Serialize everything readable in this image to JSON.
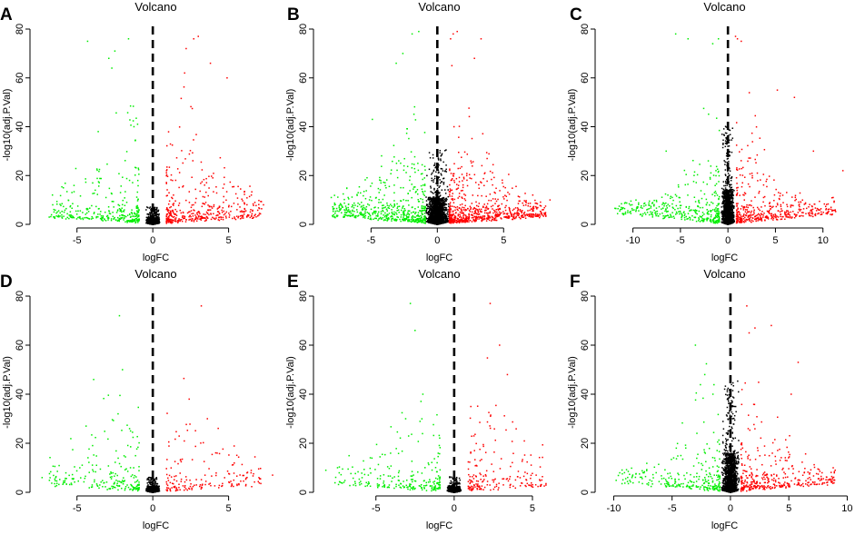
{
  "figure": {
    "colors": {
      "up": "#ff0000",
      "down": "#00ee00",
      "ns": "#000000",
      "axis": "#000000",
      "threshold": "#000000"
    }
  },
  "chart_data": [
    {
      "panel": "A",
      "type": "scatter",
      "title": "Volcano",
      "xlabel": "logFC",
      "ylabel": "-log10(adj.P.Val)",
      "xlim": [
        -7.8,
        8.2
      ],
      "ylim": [
        0,
        80
      ],
      "xticks": [
        -5,
        0,
        5
      ],
      "yticks": [
        0,
        20,
        40,
        60,
        80
      ],
      "threshold_x": 0,
      "seed": 11,
      "n_ns": 1400,
      "ns_spread": 0.35,
      "ns_max": 7,
      "n_up": 420,
      "n_down": 330,
      "up_highlights": [
        [
          2.7,
          76
        ],
        [
          3.0,
          77
        ],
        [
          2.2,
          72
        ],
        [
          3.8,
          66
        ],
        [
          4.9,
          60
        ],
        [
          2.1,
          62
        ],
        [
          7.3,
          8
        ],
        [
          6.5,
          12
        ]
      ],
      "down_highlights": [
        [
          -4.3,
          75
        ],
        [
          -2.5,
          71
        ],
        [
          -1.6,
          76
        ],
        [
          -2.9,
          68
        ],
        [
          -2.7,
          64
        ],
        [
          -6.6,
          8
        ],
        [
          -3.6,
          38
        ]
      ]
    },
    {
      "panel": "B",
      "type": "scatter",
      "title": "Volcano",
      "xlabel": "logFC",
      "ylabel": "-log10(adj.P.Val)",
      "xlim": [
        -9.0,
        9.3
      ],
      "ylim": [
        0,
        80
      ],
      "xticks": [
        -5,
        0,
        5
      ],
      "yticks": [
        0,
        20,
        40,
        60,
        80
      ],
      "threshold_x": 0,
      "seed": 23,
      "n_ns": 1800,
      "ns_spread": 0.7,
      "ns_max": 30,
      "n_up": 700,
      "n_down": 550,
      "up_highlights": [
        [
          1.2,
          78
        ],
        [
          1.5,
          79
        ],
        [
          1.0,
          76
        ],
        [
          3.3,
          76
        ],
        [
          2.8,
          68
        ],
        [
          1.1,
          65
        ],
        [
          8.5,
          10
        ],
        [
          7.2,
          12
        ]
      ],
      "down_highlights": [
        [
          -1.9,
          78
        ],
        [
          -1.4,
          79
        ],
        [
          -2.6,
          70
        ],
        [
          -3.1,
          66
        ],
        [
          -8.0,
          11
        ],
        [
          -4.9,
          43
        ]
      ]
    },
    {
      "panel": "C",
      "type": "scatter",
      "title": "Volcano",
      "xlabel": "logFC",
      "ylabel": "-log10(adj.P.Val)",
      "xlim": [
        -13.5,
        12.8
      ],
      "ylim": [
        0,
        80
      ],
      "xticks": [
        -10,
        -5,
        0,
        5,
        10
      ],
      "yticks": [
        0,
        20,
        40,
        60,
        80
      ],
      "threshold_x": 0,
      "seed": 37,
      "n_ns": 1500,
      "ns_spread": 0.55,
      "ns_max": 40,
      "n_up": 450,
      "n_down": 380,
      "up_highlights": [
        [
          1.0,
          76
        ],
        [
          1.4,
          75
        ],
        [
          0.8,
          77
        ],
        [
          5.2,
          55
        ],
        [
          7.0,
          52
        ],
        [
          12.1,
          22
        ],
        [
          9.0,
          30
        ]
      ],
      "down_highlights": [
        [
          -1.0,
          76
        ],
        [
          -1.6,
          74
        ],
        [
          -4.2,
          76
        ],
        [
          -6.5,
          30
        ],
        [
          -5.5,
          78
        ]
      ]
    },
    {
      "panel": "D",
      "type": "scatter",
      "title": "Volcano",
      "xlabel": "logFC",
      "ylabel": "-log10(adj.P.Val)",
      "xlim": [
        -7.8,
        8.2
      ],
      "ylim": [
        0,
        80
      ],
      "xticks": [
        -5,
        0,
        5
      ],
      "yticks": [
        0,
        20,
        40,
        60,
        80
      ],
      "threshold_x": 0,
      "seed": 41,
      "n_ns": 1200,
      "ns_spread": 0.35,
      "ns_max": 6,
      "n_up": 170,
      "n_down": 210,
      "up_highlights": [
        [
          3.2,
          76
        ],
        [
          2.4,
          38
        ],
        [
          3.6,
          30
        ],
        [
          7.9,
          7
        ],
        [
          7.0,
          6
        ]
      ],
      "down_highlights": [
        [
          -2.2,
          72
        ],
        [
          -2.0,
          50
        ],
        [
          -3.9,
          46
        ],
        [
          -7.3,
          6
        ],
        [
          -4.4,
          27
        ]
      ]
    },
    {
      "panel": "E",
      "type": "scatter",
      "title": "Volcano",
      "xlabel": "logFC",
      "ylabel": "-log10(adj.P.Val)",
      "xlim": [
        -8.7,
        6.8
      ],
      "ylim": [
        0,
        80
      ],
      "xticks": [
        -5,
        0,
        5
      ],
      "yticks": [
        0,
        20,
        40,
        60,
        80
      ],
      "threshold_x": 0,
      "seed": 53,
      "n_ns": 1200,
      "ns_spread": 0.35,
      "ns_max": 6,
      "n_up": 190,
      "n_down": 230,
      "up_highlights": [
        [
          2.3,
          77
        ],
        [
          2.9,
          60
        ],
        [
          3.4,
          48
        ],
        [
          5.6,
          5
        ]
      ],
      "down_highlights": [
        [
          -2.8,
          77
        ],
        [
          -2.5,
          66
        ],
        [
          -2.0,
          40
        ],
        [
          -8.2,
          9
        ],
        [
          -3.1,
          30
        ]
      ]
    },
    {
      "panel": "F",
      "type": "scatter",
      "title": "Volcano",
      "xlabel": "logFC",
      "ylabel": "-log10(adj.P.Val)",
      "xlim": [
        -11.2,
        10.2
      ],
      "ylim": [
        0,
        80
      ],
      "xticks": [
        -10,
        -5,
        0,
        5,
        10
      ],
      "yticks": [
        0,
        20,
        40,
        60,
        80
      ],
      "threshold_x": 0,
      "seed": 67,
      "n_ns": 1500,
      "ns_spread": 0.6,
      "ns_max": 45,
      "n_up": 360,
      "n_down": 260,
      "up_highlights": [
        [
          1.4,
          76
        ],
        [
          1.6,
          65
        ],
        [
          2.1,
          67
        ],
        [
          3.5,
          68
        ],
        [
          5.8,
          53
        ],
        [
          5.2,
          40
        ],
        [
          8.8,
          10
        ]
      ],
      "down_highlights": [
        [
          -3.0,
          60
        ],
        [
          -2.2,
          48
        ],
        [
          -7.5,
          8
        ],
        [
          -1.5,
          40
        ]
      ]
    }
  ]
}
